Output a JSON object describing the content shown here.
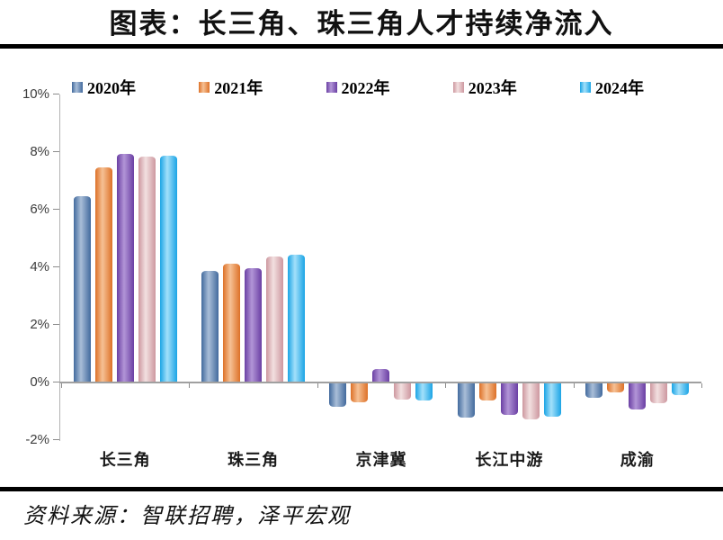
{
  "page": {
    "title": "图表：长三角、珠三角人才持续净流入",
    "source": "资料来源：智联招聘，泽平宏观"
  },
  "chart_data": {
    "type": "bar",
    "title": "图表：长三角、珠三角人才持续净流入",
    "categories": [
      "长三角",
      "珠三角",
      "京津冀",
      "长江中游",
      "成渝"
    ],
    "series": [
      {
        "name": "2020年",
        "colors": {
          "edge": "#426a9d",
          "mid": "#a9bed8"
        },
        "values": [
          6.45,
          3.85,
          -0.8,
          -1.2,
          -0.5
        ]
      },
      {
        "name": "2021年",
        "colors": {
          "edge": "#dd7128",
          "mid": "#f6c195"
        },
        "values": [
          7.45,
          4.1,
          -0.65,
          -0.6,
          -0.3
        ]
      },
      {
        "name": "2022年",
        "colors": {
          "edge": "#6a3fa3",
          "mid": "#b295d7"
        },
        "values": [
          7.9,
          3.95,
          0.45,
          -1.1,
          -0.9
        ]
      },
      {
        "name": "2023年",
        "colors": {
          "edge": "#cd979f",
          "mid": "#f2e0e0"
        },
        "values": [
          7.8,
          4.35,
          -0.55,
          -1.25,
          -0.7
        ]
      },
      {
        "name": "2024年",
        "colors": {
          "edge": "#1ba4e5",
          "mid": "#a3e0fa"
        },
        "values": [
          7.85,
          4.4,
          -0.6,
          -1.15,
          -0.4
        ]
      }
    ],
    "y_ticks": [
      "10%",
      "8%",
      "6%",
      "4%",
      "2%",
      "0%",
      "-2%"
    ],
    "ylim": [
      -2,
      10
    ],
    "unit": "%",
    "grid": false,
    "legend_position": "top",
    "axis_color": "#a0a0a0",
    "rule_color": "#000000"
  }
}
